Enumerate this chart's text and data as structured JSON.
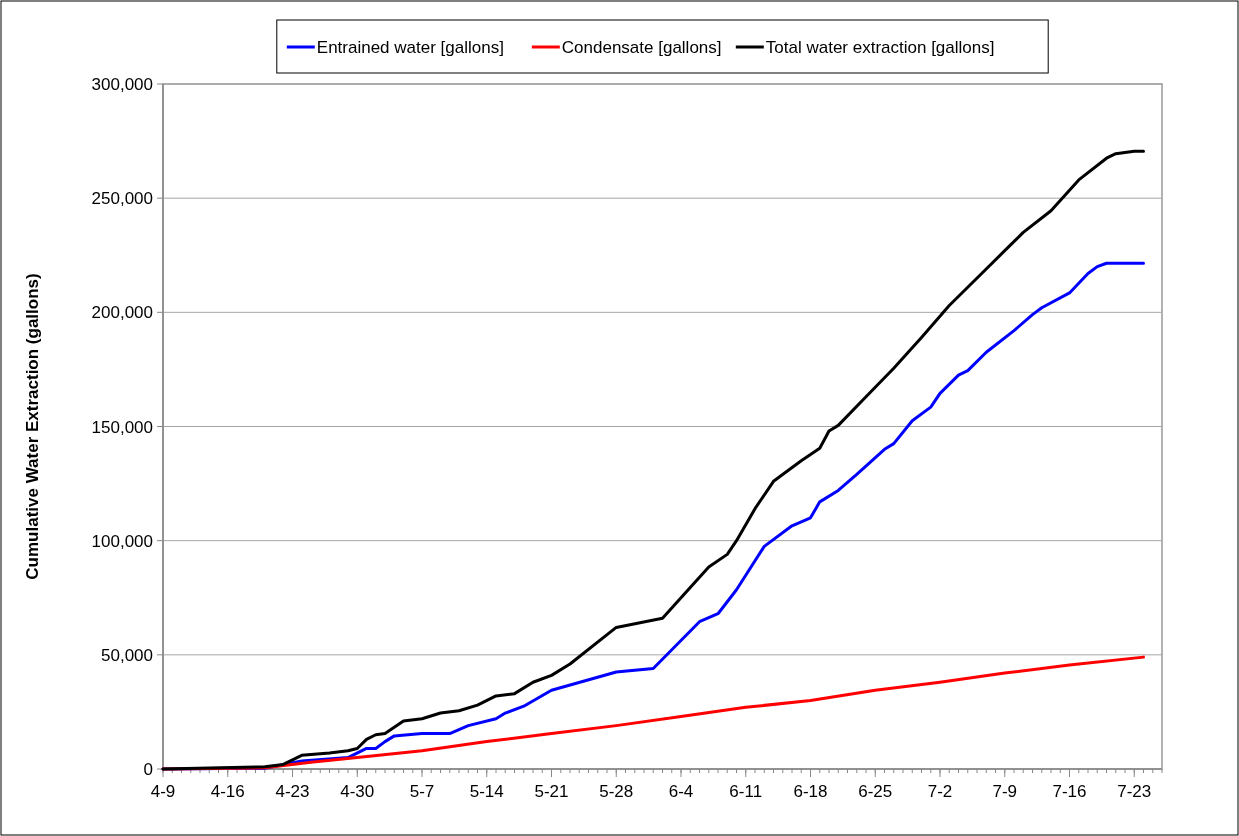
{
  "chart_data": {
    "type": "line",
    "ylabel": "Cumulative Water Extraction (gallons)",
    "xlim": [
      "--04-09",
      "--07-26"
    ],
    "xticks": [
      {
        "value": "--04-09",
        "label": "4-9"
      },
      {
        "value": "--04-16",
        "label": "4-16"
      },
      {
        "value": "--04-23",
        "label": "4-23"
      },
      {
        "value": "--04-30",
        "label": "4-30"
      },
      {
        "value": "--05-07",
        "label": "5-7"
      },
      {
        "value": "--05-14",
        "label": "5-14"
      },
      {
        "value": "--05-21",
        "label": "5-21"
      },
      {
        "value": "--05-28",
        "label": "5-28"
      },
      {
        "value": "--06-04",
        "label": "6-4"
      },
      {
        "value": "--06-11",
        "label": "6-11"
      },
      {
        "value": "--06-18",
        "label": "6-18"
      },
      {
        "value": "--06-25",
        "label": "6-25"
      },
      {
        "value": "--07-02",
        "label": "7-2"
      },
      {
        "value": "--07-09",
        "label": "7-9"
      },
      {
        "value": "--07-16",
        "label": "7-16"
      },
      {
        "value": "--07-23",
        "label": "7-23"
      }
    ],
    "ylim": [
      0,
      300000
    ],
    "yticks": [
      {
        "value": 0,
        "label": "0"
      },
      {
        "value": 50000,
        "label": "50,000"
      },
      {
        "value": 100000,
        "label": "100,000"
      },
      {
        "value": 150000,
        "label": "150,000"
      },
      {
        "value": 200000,
        "label": "200,000"
      },
      {
        "value": 250000,
        "label": "250,000"
      },
      {
        "value": 300000,
        "label": "300,000"
      }
    ],
    "grid": "y",
    "legend": "top",
    "marker": "none",
    "line_style": "solid",
    "series": [
      {
        "name": "Entrained water [gallons]",
        "color": "#0000ff",
        "x": [
          "--04-09",
          "--04-20",
          "--04-24",
          "--04-29",
          "--05-01",
          "--05-02",
          "--05-03",
          "--05-04",
          "--05-07",
          "--05-10",
          "--05-12",
          "--05-15",
          "--05-16",
          "--05-18",
          "--05-21",
          "--05-28",
          "--06-01",
          "--06-06",
          "--06-08",
          "--06-10",
          "--06-13",
          "--06-16",
          "--06-18",
          "--06-19",
          "--06-21",
          "--06-23",
          "--06-26",
          "--06-27",
          "--06-29",
          "--07-01",
          "--07-02",
          "--07-04",
          "--07-05",
          "--07-07",
          "--07-10",
          "--07-12",
          "--07-13",
          "--07-16",
          "--07-18",
          "--07-19",
          "--07-20",
          "--07-24"
        ],
        "values": [
          0,
          300,
          3500,
          5000,
          9000,
          9000,
          12000,
          14500,
          15500,
          15500,
          19000,
          22000,
          24500,
          27500,
          34500,
          42500,
          44000,
          64500,
          68000,
          78500,
          97500,
          106500,
          110000,
          117000,
          122000,
          129000,
          140000,
          142500,
          152500,
          158500,
          164500,
          172500,
          174500,
          182500,
          192000,
          199000,
          202000,
          208500,
          217000,
          220000,
          221500,
          221500
        ]
      },
      {
        "name": "Condensate [gallons]",
        "color": "#ff0000",
        "x": [
          "--04-09",
          "--04-20",
          "--04-25",
          "--04-30",
          "--05-07",
          "--05-14",
          "--05-21",
          "--05-28",
          "--06-04",
          "--06-11",
          "--06-18",
          "--06-25",
          "--07-02",
          "--07-09",
          "--07-16",
          "--07-24"
        ],
        "values": [
          0,
          500,
          3000,
          5000,
          8000,
          12000,
          15500,
          19000,
          23000,
          27000,
          30000,
          34500,
          38000,
          42000,
          45500,
          49000
        ]
      },
      {
        "name": "Total water extraction [gallons]",
        "color": "#000000",
        "x": [
          "--04-09",
          "--04-20",
          "--04-22",
          "--04-24",
          "--04-27",
          "--04-29",
          "--04-30",
          "--05-01",
          "--05-02",
          "--05-03",
          "--05-05",
          "--05-07",
          "--05-09",
          "--05-11",
          "--05-13",
          "--05-15",
          "--05-17",
          "--05-19",
          "--05-21",
          "--05-23",
          "--05-28",
          "--06-02",
          "--06-07",
          "--06-09",
          "--06-10",
          "--06-12",
          "--06-14",
          "--06-17",
          "--06-19",
          "--06-20",
          "--06-21",
          "--06-24",
          "--06-27",
          "--06-30",
          "--07-03",
          "--07-05",
          "--07-09",
          "--07-11",
          "--07-14",
          "--07-17",
          "--07-20",
          "--07-21",
          "--07-23",
          "--07-24"
        ],
        "values": [
          0,
          1000,
          2000,
          6000,
          7000,
          8000,
          9000,
          13000,
          15000,
          15500,
          21000,
          22000,
          24500,
          25500,
          28000,
          32000,
          33000,
          38000,
          41000,
          46000,
          62000,
          66000,
          88500,
          94000,
          100000,
          114000,
          126000,
          135000,
          140500,
          148000,
          150500,
          163000,
          175500,
          189000,
          203000,
          211000,
          227000,
          235000,
          244500,
          258000,
          267500,
          269500,
          270500,
          270500
        ]
      }
    ]
  }
}
